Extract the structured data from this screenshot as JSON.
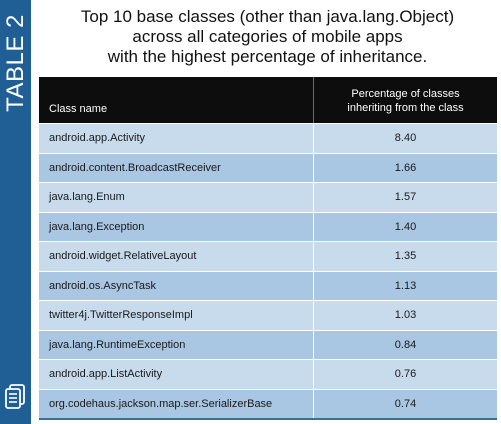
{
  "side_label": "TABLE 2",
  "title_lines": [
    "Top 10 base classes (other than java.lang.Object)",
    "across all categories of mobile apps",
    "with the highest percentage of inheritance."
  ],
  "table": {
    "headers": {
      "class_name": "Class name",
      "percentage_line1": "Percentage of classes",
      "percentage_line2": "inheriting from the class"
    },
    "rows": [
      {
        "class_name": "android.app.Activity",
        "percentage": "8.40"
      },
      {
        "class_name": "android.content.BroadcastReceiver",
        "percentage": "1.66"
      },
      {
        "class_name": "java.lang.Enum",
        "percentage": "1.57"
      },
      {
        "class_name": "java.lang.Exception",
        "percentage": "1.40"
      },
      {
        "class_name": "android.widget.RelativeLayout",
        "percentage": "1.35"
      },
      {
        "class_name": "android.os.AsyncTask",
        "percentage": "1.13"
      },
      {
        "class_name": "twitter4j.TwitterResponseImpl",
        "percentage": "1.03"
      },
      {
        "class_name": "java.lang.RuntimeException",
        "percentage": "0.84"
      },
      {
        "class_name": "android.app.ListActivity",
        "percentage": "0.76"
      },
      {
        "class_name": "org.codehaus.jackson.map.ser.SerializerBase",
        "percentage": "0.74"
      }
    ]
  },
  "icons": {
    "side_icon": "document-icon"
  },
  "colors": {
    "side_bar": "#1f5f95",
    "header_bg": "#0d0d0d",
    "row_light": "#c7dbec",
    "row_dark": "#a9c6e2"
  }
}
